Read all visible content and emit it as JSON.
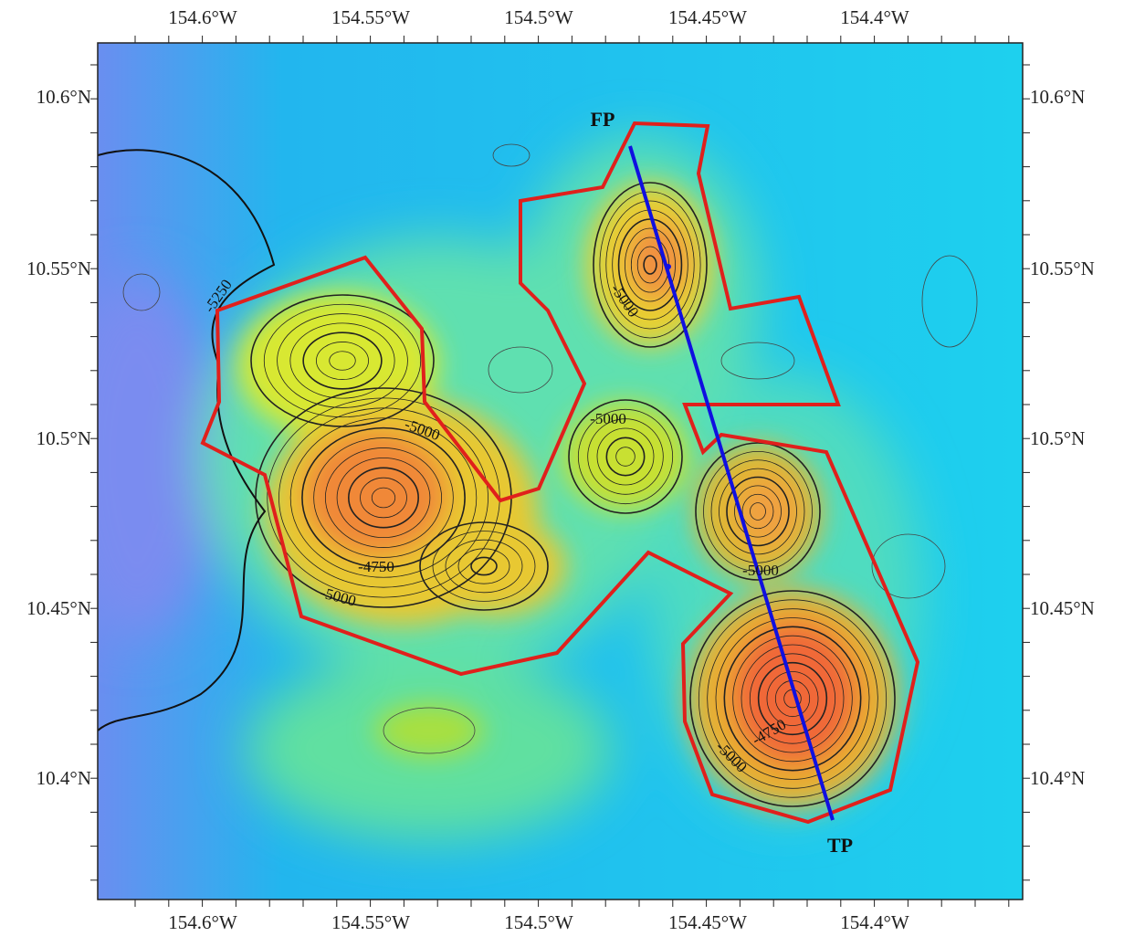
{
  "map": {
    "lon_ticks": [
      "154.6°W",
      "154.55°W",
      "154.5°W",
      "154.45°W",
      "154.4°W"
    ],
    "lat_ticks": [
      "10.6°N",
      "10.55°N",
      "10.5°N",
      "10.45°N",
      "10.4°N"
    ],
    "contour_labels": [
      "-5250",
      "-5000",
      "-5000",
      "-4750",
      "-5000",
      "-5000",
      "-5000",
      "-4750",
      "-5000"
    ],
    "profile": {
      "start": "FP",
      "end": "TP"
    }
  }
}
